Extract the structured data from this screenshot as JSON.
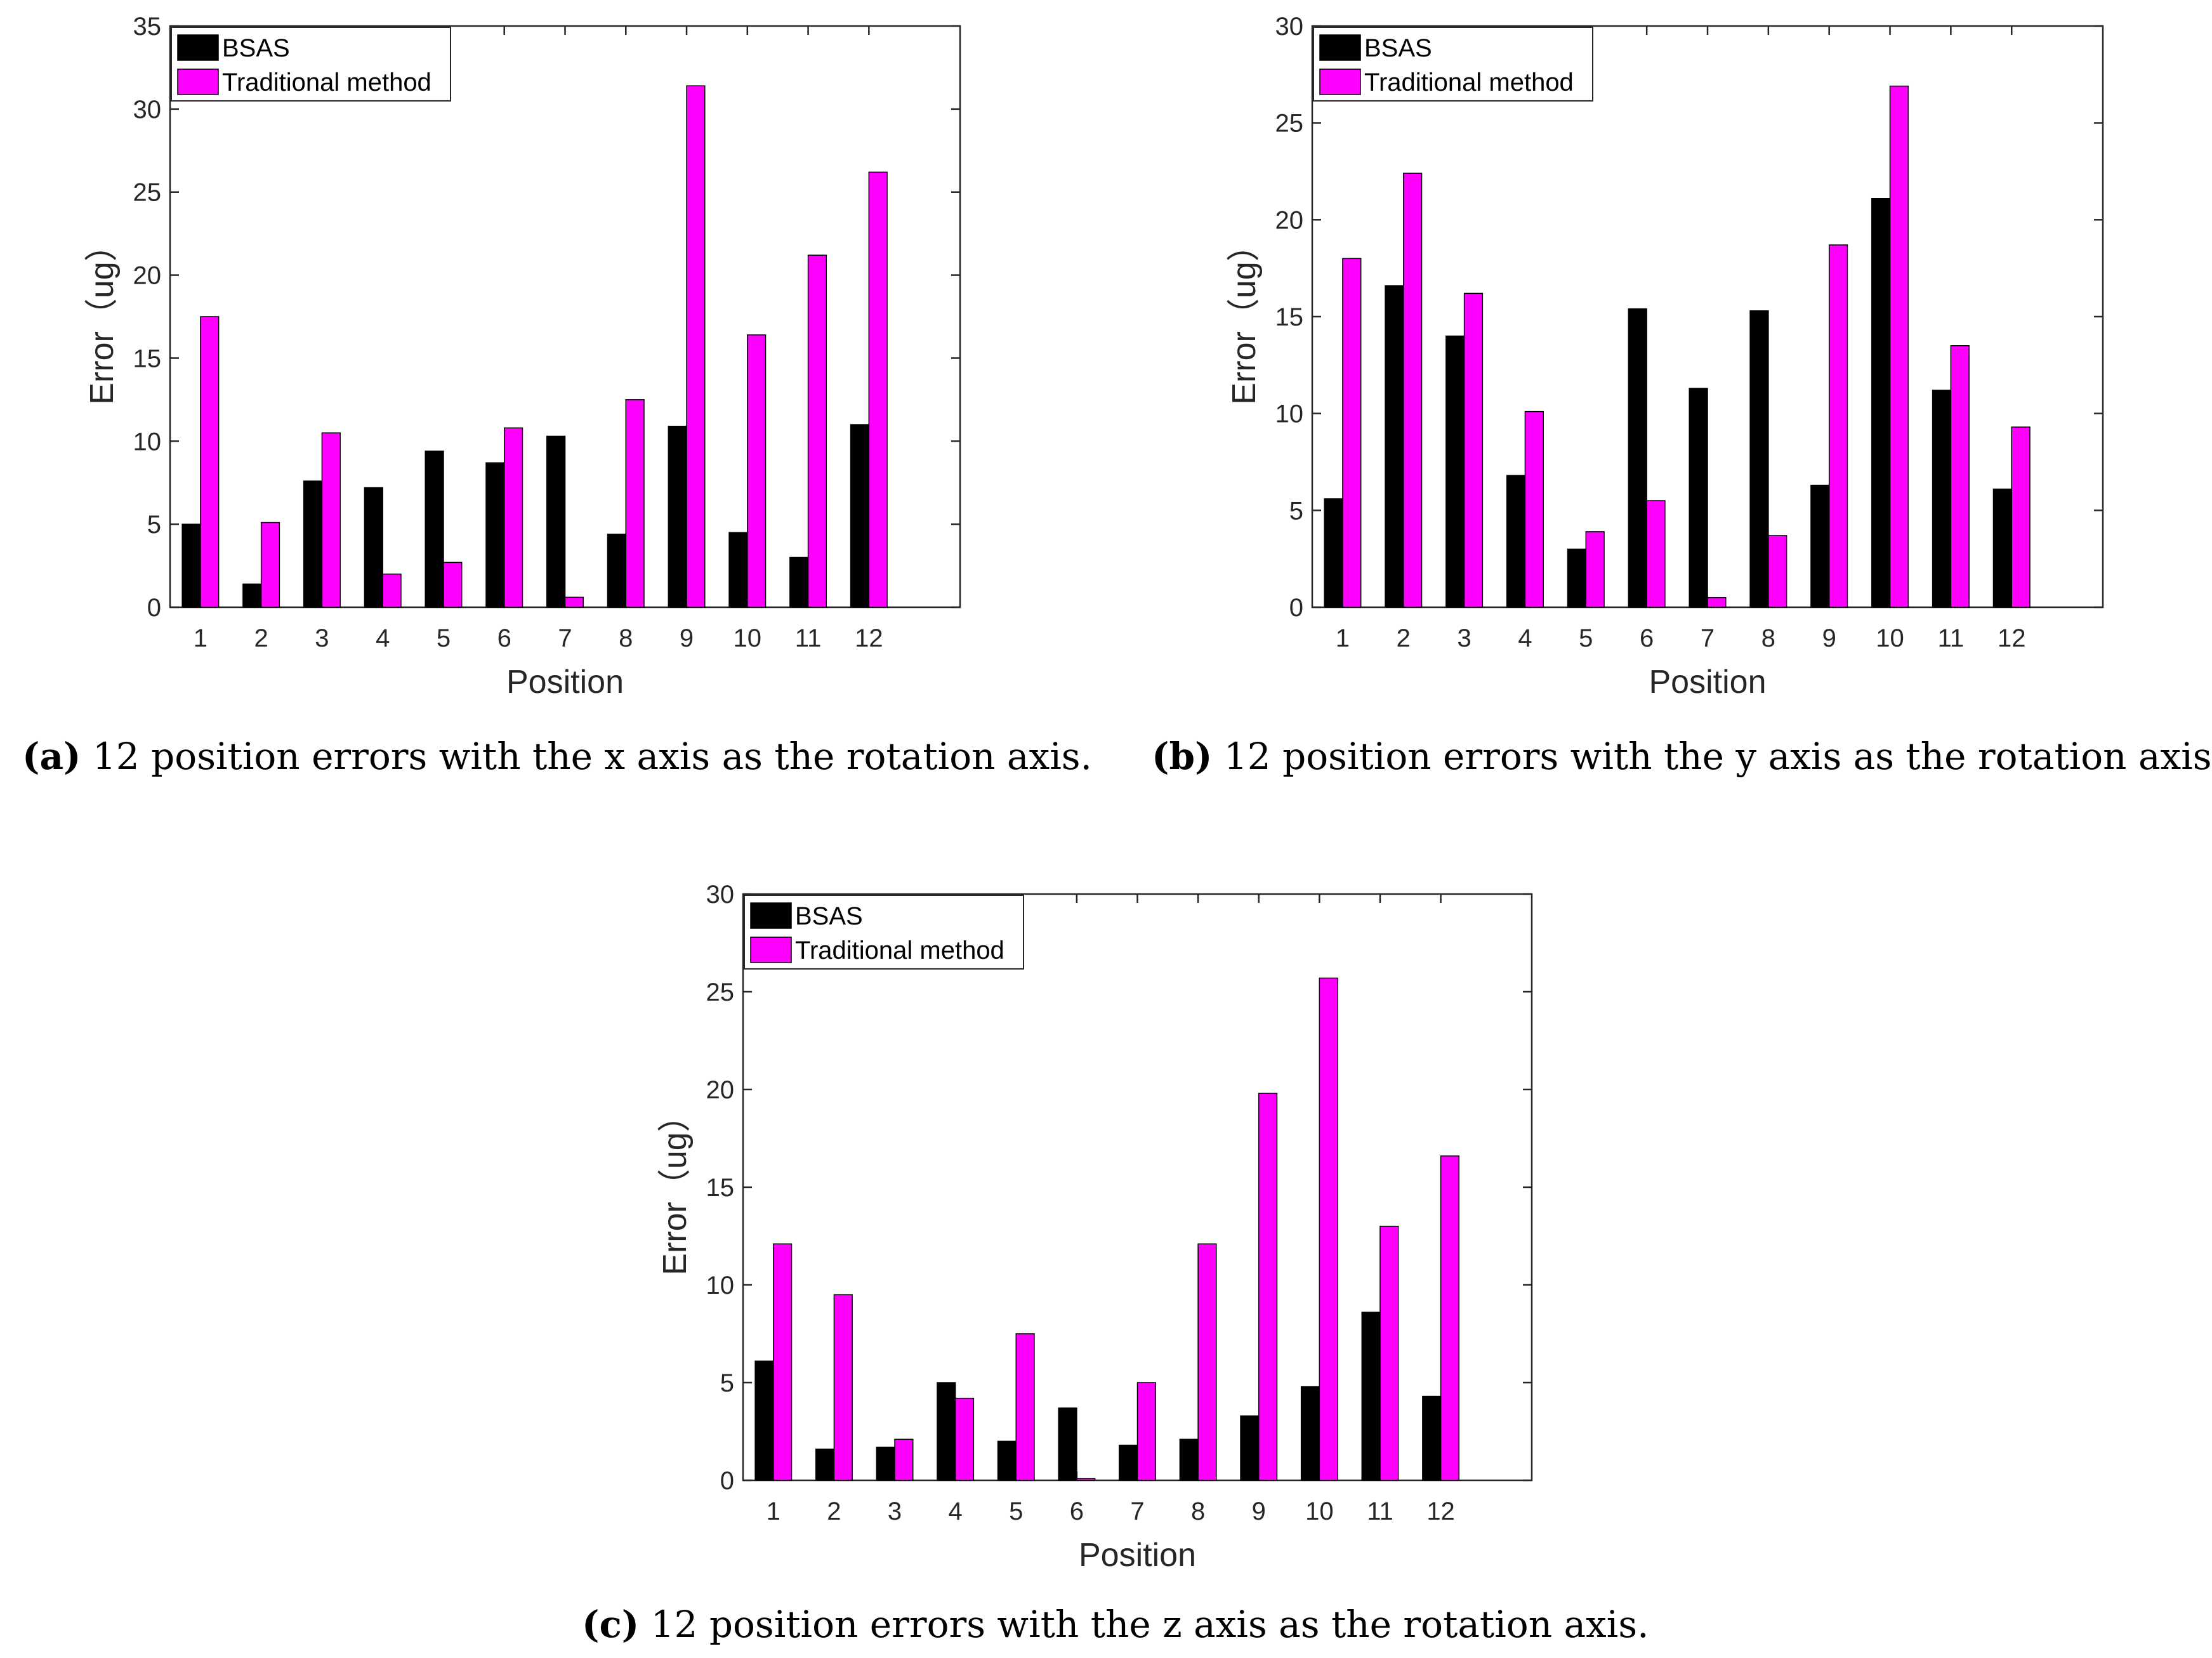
{
  "colors": {
    "bsas": "#000000",
    "traditional": "#ff00ff",
    "axis": "#262626",
    "background": "#ffffff"
  },
  "legend": {
    "series1": "BSAS",
    "series2": "Traditional method"
  },
  "chart_data": [
    {
      "type": "bar",
      "title": "",
      "xlabel": "Position",
      "ylabel": "Error（ug）",
      "categories": [
        "1",
        "2",
        "3",
        "4",
        "5",
        "6",
        "7",
        "8",
        "9",
        "10",
        "11",
        "12"
      ],
      "ylim": [
        0,
        35
      ],
      "yticks": [
        0,
        5,
        10,
        15,
        20,
        25,
        30,
        35
      ],
      "xlim": [
        0.5,
        13.5
      ],
      "grid": false,
      "legend_position": "top-left",
      "series": [
        {
          "name": "BSAS",
          "values": [
            5.0,
            1.4,
            7.6,
            7.2,
            9.4,
            8.7,
            10.3,
            4.4,
            10.9,
            4.5,
            3.0,
            11.0
          ]
        },
        {
          "name": "Traditional method",
          "values": [
            17.5,
            5.1,
            10.5,
            2.0,
            2.7,
            10.8,
            0.6,
            12.5,
            31.4,
            16.4,
            21.2,
            26.2
          ]
        }
      ],
      "caption": {
        "letter": "(a)",
        "text": "12 position errors with the x axis as the rotation axis."
      }
    },
    {
      "type": "bar",
      "title": "",
      "xlabel": "Position",
      "ylabel": "Error（ug）",
      "categories": [
        "1",
        "2",
        "3",
        "4",
        "5",
        "6",
        "7",
        "8",
        "9",
        "10",
        "11",
        "12"
      ],
      "ylim": [
        0,
        30
      ],
      "yticks": [
        0,
        5,
        10,
        15,
        20,
        25,
        30
      ],
      "xlim": [
        0.5,
        13.5
      ],
      "grid": false,
      "legend_position": "top-left",
      "series": [
        {
          "name": "BSAS",
          "values": [
            5.6,
            16.6,
            14.0,
            6.8,
            3.0,
            15.4,
            11.3,
            15.3,
            6.3,
            21.1,
            11.2,
            6.1
          ]
        },
        {
          "name": "Traditional method",
          "values": [
            18.0,
            22.4,
            16.2,
            10.1,
            3.9,
            5.5,
            0.5,
            3.7,
            18.7,
            26.9,
            13.5,
            9.3
          ]
        }
      ],
      "caption": {
        "letter": "(b)",
        "text": "12 position errors with the y axis as the rotation axis."
      }
    },
    {
      "type": "bar",
      "title": "",
      "xlabel": "Position",
      "ylabel": "Error（ug）",
      "categories": [
        "1",
        "2",
        "3",
        "4",
        "5",
        "6",
        "7",
        "8",
        "9",
        "10",
        "11",
        "12"
      ],
      "ylim": [
        0,
        30
      ],
      "yticks": [
        0,
        5,
        10,
        15,
        20,
        25,
        30
      ],
      "xlim": [
        0.5,
        13.5
      ],
      "grid": false,
      "legend_position": "top-left",
      "series": [
        {
          "name": "BSAS",
          "values": [
            6.1,
            1.6,
            1.7,
            5.0,
            2.0,
            3.7,
            1.8,
            2.1,
            3.3,
            4.8,
            8.6,
            4.3
          ]
        },
        {
          "name": "Traditional method",
          "values": [
            12.1,
            9.5,
            2.1,
            4.2,
            7.5,
            0.1,
            5.0,
            12.1,
            19.8,
            25.7,
            13.0,
            16.6
          ]
        }
      ],
      "caption": {
        "letter": "(c)",
        "text": "12 position errors with the z axis as the rotation axis."
      }
    }
  ]
}
